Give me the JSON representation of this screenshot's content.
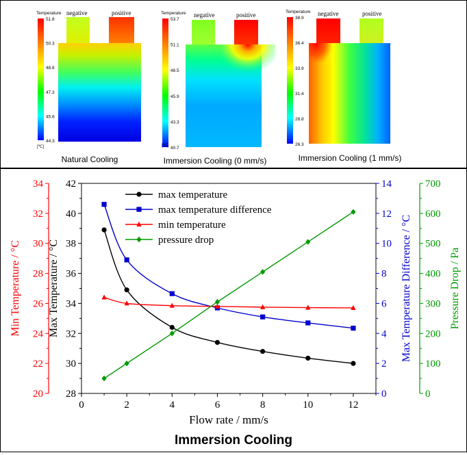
{
  "contours": [
    {
      "caption": "Natural Cooling",
      "legend_title": "Temperature",
      "ticks": [
        "51.8",
        "50.3",
        "48.8",
        "47.3",
        "45.8",
        "44.3"
      ],
      "unit": "[℃]",
      "tab_negative": "negative",
      "tab_positive": "positive"
    },
    {
      "caption": "Immersion Cooling (0 mm/s)",
      "legend_title": "Temperature",
      "ticks": [
        "53.7",
        "51.1",
        "48.5",
        "45.9",
        "43.3",
        "40.7"
      ],
      "unit": "[℃]",
      "tab_negative": "negative",
      "tab_positive": "positive"
    },
    {
      "caption": "Immersion Cooling (1 mm/s)",
      "legend_title": "Temperature",
      "ticks": [
        "38.9",
        "36.4",
        "33.9",
        "31.4",
        "28.8",
        "26.3"
      ],
      "unit": "[℃]",
      "tab_negative": "negative",
      "tab_positive": "positive"
    }
  ],
  "chart_data": {
    "type": "line",
    "title": "Immersion Cooling",
    "xlabel": "Flow rate / mm/s",
    "xlim": [
      0,
      13
    ],
    "xticks": [
      "0",
      "2",
      "4",
      "6",
      "8",
      "10",
      "12"
    ],
    "axes": {
      "min_temp": {
        "label": "Min Temperature / °C",
        "lim": [
          20,
          34
        ],
        "ticks": [
          "20",
          "22",
          "24",
          "26",
          "28",
          "30",
          "32",
          "34"
        ],
        "color": "#ff0000"
      },
      "max_temp": {
        "label": "Max Temperature / °C",
        "lim": [
          28,
          42
        ],
        "ticks": [
          "28",
          "30",
          "32",
          "34",
          "36",
          "38",
          "40",
          "42"
        ],
        "color": "#000000"
      },
      "max_temp_diff": {
        "label": "Max Temperature Difference / °C",
        "lim": [
          0,
          14
        ],
        "ticks": [
          "0",
          "2",
          "4",
          "6",
          "8",
          "10",
          "12",
          "14"
        ],
        "color": "#0000cc"
      },
      "pressure_drop": {
        "label": "Pressure Drop  / Pa",
        "lim": [
          0,
          700
        ],
        "ticks": [
          "0",
          "100",
          "200",
          "300",
          "400",
          "500",
          "600",
          "700"
        ],
        "color": "#009900"
      }
    },
    "series": [
      {
        "name": "max temperature",
        "axis": "max_temp",
        "color": "#000000",
        "marker": "circle",
        "smooth": true,
        "x": [
          1,
          2,
          4,
          6,
          8,
          10,
          12
        ],
        "values": [
          38.9,
          34.9,
          32.4,
          31.4,
          30.8,
          30.35,
          30.0
        ]
      },
      {
        "name": "max temperature difference",
        "axis": "max_temp_diff",
        "color": "#0000cc",
        "marker": "square",
        "smooth": true,
        "x": [
          1,
          2,
          4,
          6,
          8,
          10,
          12
        ],
        "values": [
          12.6,
          8.9,
          6.65,
          5.7,
          5.1,
          4.7,
          4.35
        ]
      },
      {
        "name": "min temperature",
        "axis": "min_temp",
        "color": "#ff0000",
        "marker": "triangle",
        "smooth": true,
        "x": [
          1,
          2,
          4,
          6,
          8,
          10,
          12
        ],
        "values": [
          26.4,
          26.0,
          25.85,
          25.8,
          25.75,
          25.72,
          25.7
        ]
      },
      {
        "name": "pressure drop",
        "axis": "pressure_drop",
        "color": "#009900",
        "marker": "diamond",
        "smooth": false,
        "x": [
          1,
          2,
          4,
          6,
          8,
          10,
          12
        ],
        "values": [
          50,
          100,
          200,
          305,
          405,
          505,
          605
        ]
      }
    ]
  }
}
